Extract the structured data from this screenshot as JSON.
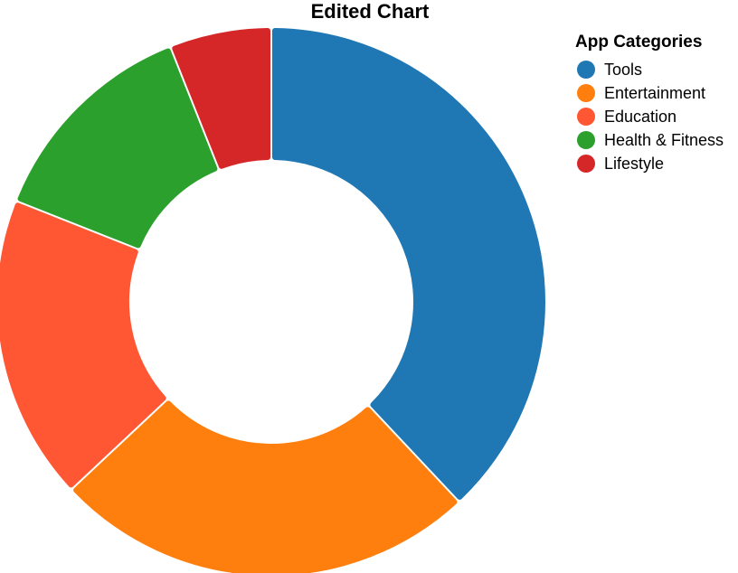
{
  "chart_data": {
    "type": "pie",
    "variant": "donut",
    "title": "Edited Chart",
    "legend": {
      "title": "App Categories",
      "placement": "top-right"
    },
    "categories": [
      "Tools",
      "Entertainment",
      "Education",
      "Health & Fitness",
      "Lifestyle"
    ],
    "values": [
      38,
      25,
      18,
      13,
      6
    ],
    "colors": [
      "#1f77b4",
      "#ff7f0e",
      "#ff5733",
      "#2ca02c",
      "#d62728"
    ]
  }
}
